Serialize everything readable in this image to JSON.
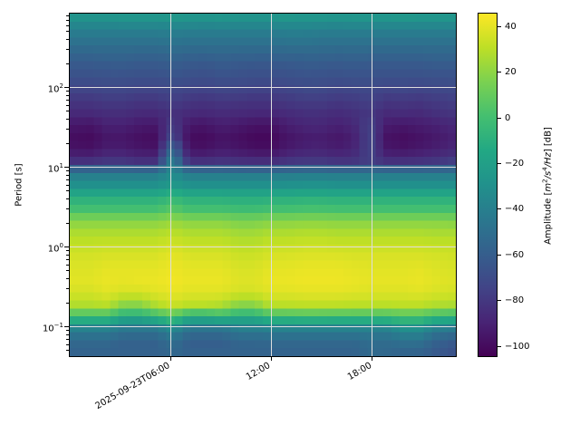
{
  "chart_data": {
    "type": "heatmap",
    "title": "",
    "xlabel": "",
    "ylabel": "Period [s]",
    "x_axis": {
      "range_hours": [
        0,
        23
      ],
      "ticks": [
        {
          "hour": 6,
          "label": "2025-09-23T06:00"
        },
        {
          "hour": 12,
          "label": "12:00"
        },
        {
          "hour": 18,
          "label": "18:00"
        }
      ]
    },
    "y_axis": {
      "scale": "log",
      "unit": "s",
      "range_s": [
        0.043,
        850
      ],
      "ticks": [
        {
          "value": 100,
          "base": "10",
          "exp": "2"
        },
        {
          "value": 10,
          "base": "10",
          "exp": "1"
        },
        {
          "value": 1,
          "base": "10",
          "exp": "0"
        },
        {
          "value": 0.1,
          "base": "10",
          "exp": "−1"
        }
      ]
    },
    "grid": {
      "show": true,
      "color": "#dedede"
    },
    "colorbar": {
      "label_text": "Amplitude [m²/s⁴/Hz] [dB]",
      "label_parts": {
        "prefix": "Amplitude [",
        "m": "m",
        "sup1": "2",
        "slash_s": "/s",
        "sup2": "4",
        "slash_hz": "/Hz",
        "suffix": "] [dB]"
      },
      "vmin": -104.5,
      "vmax": 45.5,
      "colormap": "viridis",
      "colormap_stops": [
        "#440154",
        "#482475",
        "#414487",
        "#355f8d",
        "#2a788e",
        "#21918c",
        "#22a884",
        "#44bf70",
        "#7ad151",
        "#bddf26",
        "#fde725"
      ],
      "ticks": [
        {
          "value": 40,
          "label": "40"
        },
        {
          "value": 20,
          "label": "20"
        },
        {
          "value": 0,
          "label": "0"
        },
        {
          "value": -20,
          "label": "−20"
        },
        {
          "value": -40,
          "label": "−40"
        },
        {
          "value": -60,
          "label": "−60"
        },
        {
          "value": -80,
          "label": "−80"
        },
        {
          "value": -100,
          "label": "−100"
        }
      ]
    },
    "heatmap": {
      "units": "dB",
      "columns_hours": [
        0.48,
        1.44,
        2.4,
        3.35,
        4.31,
        5.27,
        6.23,
        7.19,
        8.15,
        9.1,
        10.06,
        11.02,
        11.98,
        12.94,
        13.9,
        14.85,
        15.81,
        16.77,
        17.73,
        18.69,
        19.65,
        20.6,
        21.56,
        22.52
      ],
      "rows_log10_period_s": [
        2.85,
        2.7,
        2.55,
        2.4,
        2.25,
        2.1,
        1.95,
        1.8,
        1.65,
        1.5,
        1.35,
        1.2,
        1.05,
        0.9,
        0.75,
        0.6,
        0.45,
        0.3,
        0.15,
        0.0,
        -0.15,
        -0.3,
        -0.45,
        -0.6,
        -0.75,
        -0.9,
        -1.05,
        -1.2,
        -1.35
      ],
      "values_db": [
        [
          -28,
          -28,
          -28,
          -27,
          -27,
          -27,
          -26,
          -27,
          -28,
          -27,
          -28,
          -28,
          -28,
          -26,
          -27,
          -27,
          -28,
          -27,
          -27,
          -27,
          -26,
          -27,
          -27,
          -27
        ],
        [
          -40,
          -40,
          -40,
          -40,
          -40,
          -40,
          -39,
          -40,
          -40,
          -40,
          -40,
          -40,
          -40,
          -39,
          -39,
          -40,
          -40,
          -40,
          -40,
          -40,
          -40,
          -40,
          -40,
          -40
        ],
        [
          -48,
          -48,
          -48,
          -48,
          -48,
          -48,
          -47,
          -48,
          -48,
          -48,
          -48,
          -48,
          -48,
          -47,
          -47,
          -48,
          -48,
          -48,
          -48,
          -48,
          -48,
          -48,
          -48,
          -48
        ],
        [
          -56,
          -56,
          -55,
          -55,
          -56,
          -56,
          -54,
          -56,
          -56,
          -55,
          -56,
          -56,
          -56,
          -55,
          -55,
          -55,
          -56,
          -55,
          -56,
          -56,
          -56,
          -56,
          -55,
          -55
        ],
        [
          -63,
          -63,
          -62,
          -62,
          -63,
          -63,
          -61,
          -63,
          -64,
          -62,
          -63,
          -64,
          -64,
          -63,
          -62,
          -62,
          -63,
          -62,
          -63,
          -63,
          -63,
          -63,
          -62,
          -62
        ],
        [
          -68,
          -68,
          -67,
          -67,
          -68,
          -68,
          -66,
          -68,
          -69,
          -67,
          -68,
          -69,
          -69,
          -68,
          -67,
          -67,
          -68,
          -67,
          -67,
          -68,
          -68,
          -68,
          -67,
          -67
        ],
        [
          -74,
          -74,
          -73,
          -73,
          -74,
          -74,
          -72,
          -74,
          -75,
          -73,
          -74,
          -75,
          -75,
          -74,
          -72,
          -72,
          -74,
          -73,
          -72,
          -74,
          -73,
          -74,
          -73,
          -72
        ],
        [
          -81,
          -81,
          -79,
          -79,
          -81,
          -81,
          -77,
          -81,
          -82,
          -80,
          -81,
          -82,
          -82,
          -80,
          -78,
          -78,
          -80,
          -79,
          -76,
          -81,
          -80,
          -81,
          -79,
          -77
        ],
        [
          -87,
          -87,
          -85,
          -85,
          -87,
          -87,
          -83,
          -87,
          -88,
          -86,
          -87,
          -88,
          -88,
          -86,
          -84,
          -84,
          -86,
          -84,
          -80,
          -87,
          -86,
          -87,
          -84,
          -82
        ],
        [
          -95,
          -96,
          -91,
          -91,
          -94,
          -95,
          -78,
          -95,
          -96,
          -92,
          -94,
          -97,
          -97,
          -92,
          -89,
          -88,
          -91,
          -88,
          -75,
          -93,
          -95,
          -93,
          -91,
          -88
        ],
        [
          -99,
          -100,
          -95,
          -95,
          -98,
          -99,
          -72,
          -99,
          -100,
          -96,
          -98,
          -101,
          -101,
          -96,
          -93,
          -92,
          -95,
          -92,
          -74,
          -97,
          -99,
          -97,
          -94,
          -91
        ],
        [
          -97,
          -98,
          -93,
          -93,
          -96,
          -97,
          -54,
          -97,
          -98,
          -94,
          -96,
          -99,
          -99,
          -94,
          -91,
          -90,
          -93,
          -90,
          -74,
          -95,
          -97,
          -95,
          -92,
          -89
        ],
        [
          -84,
          -84,
          -81,
          -81,
          -84,
          -84,
          -38,
          -84,
          -84,
          -82,
          -84,
          -85,
          -85,
          -82,
          -80,
          -80,
          -82,
          -82,
          -76,
          -84,
          -84,
          -83,
          -81,
          -78
        ],
        [
          -44,
          -44,
          -44,
          -44,
          -44,
          -44,
          -33,
          -44,
          -44,
          -44,
          -44,
          -44,
          -44,
          -44,
          -43,
          -43,
          -44,
          -44,
          -44,
          -44,
          -44,
          -44,
          -44,
          -44
        ],
        [
          -30,
          -30,
          -30,
          -30,
          -30,
          -30,
          -24,
          -30,
          -30,
          -30,
          -30,
          -30,
          -30,
          -30,
          -29,
          -29,
          -30,
          -30,
          -30,
          -30,
          -30,
          -30,
          -30,
          -30
        ],
        [
          -12,
          -12,
          -12,
          -12,
          -12,
          -12,
          -6,
          -12,
          -12,
          -12,
          -13,
          -13,
          -12,
          -12,
          -11,
          -11,
          -12,
          -12,
          -12,
          -12,
          -12,
          -12,
          -12,
          -12
        ],
        [
          0,
          0,
          0,
          0,
          0,
          0,
          6,
          0,
          0,
          0,
          -2,
          -2,
          0,
          0,
          1,
          1,
          0,
          0,
          0,
          0,
          0,
          0,
          0,
          0
        ],
        [
          18,
          18,
          18,
          18,
          18,
          18,
          22,
          18,
          18,
          18,
          15,
          15,
          18,
          18,
          19,
          19,
          18,
          18,
          18,
          18,
          18,
          18,
          18,
          17
        ],
        [
          27,
          27,
          27,
          27,
          27,
          27,
          30,
          27,
          27,
          27,
          24,
          24,
          27,
          27,
          28,
          28,
          27,
          27,
          27,
          27,
          27,
          27,
          26,
          26
        ],
        [
          32,
          32,
          33,
          33,
          33,
          33,
          36,
          33,
          33,
          33,
          30,
          30,
          33,
          33,
          34,
          34,
          33,
          33,
          33,
          33,
          33,
          33,
          32,
          32
        ],
        [
          36,
          36,
          37,
          37,
          37,
          37,
          40,
          37,
          37,
          37,
          34,
          34,
          37,
          37,
          38,
          38,
          38,
          37,
          37,
          37,
          37,
          37,
          36,
          35
        ],
        [
          38,
          38,
          40,
          40,
          40,
          40,
          42,
          40,
          40,
          40,
          37,
          37,
          40,
          40,
          41,
          41,
          41,
          40,
          39,
          39,
          39,
          40,
          38,
          37
        ],
        [
          39,
          39,
          41,
          40,
          41,
          41,
          43,
          41,
          41,
          41,
          38,
          38,
          41,
          41,
          42,
          42,
          42,
          41,
          40,
          40,
          40,
          41,
          39,
          38
        ],
        [
          36,
          36,
          39,
          37,
          37,
          39,
          41,
          39,
          39,
          39,
          36,
          36,
          39,
          39,
          40,
          40,
          40,
          39,
          38,
          38,
          38,
          39,
          37,
          36
        ],
        [
          28,
          28,
          30,
          19,
          19,
          28,
          34,
          30,
          30,
          28,
          19,
          19,
          30,
          30,
          31,
          31,
          31,
          30,
          30,
          30,
          31,
          31,
          28,
          27
        ],
        [
          0,
          0,
          0,
          -12,
          -12,
          -4,
          6,
          -10,
          -10,
          -4,
          -11,
          -11,
          0,
          0,
          1,
          1,
          0,
          0,
          0,
          0,
          4,
          4,
          -2,
          -4
        ],
        [
          -38,
          -38,
          -38,
          -44,
          -44,
          -44,
          -32,
          -46,
          -46,
          -46,
          -40,
          -40,
          -38,
          -38,
          -38,
          -38,
          -38,
          -38,
          -38,
          -38,
          -30,
          -30,
          -40,
          -42
        ],
        [
          -54,
          -54,
          -54,
          -58,
          -58,
          -58,
          -50,
          -60,
          -60,
          -60,
          -55,
          -55,
          -54,
          -54,
          -54,
          -54,
          -54,
          -54,
          -51,
          -52,
          -48,
          -48,
          -57,
          -61
        ],
        [
          -57,
          -57,
          -57,
          -58,
          -58,
          -58,
          -54,
          -58,
          -58,
          -58,
          -57,
          -57,
          -57,
          -57,
          -57,
          -57,
          -57,
          -57,
          -53,
          -54,
          -56,
          -56,
          -62,
          -66
        ]
      ]
    }
  }
}
